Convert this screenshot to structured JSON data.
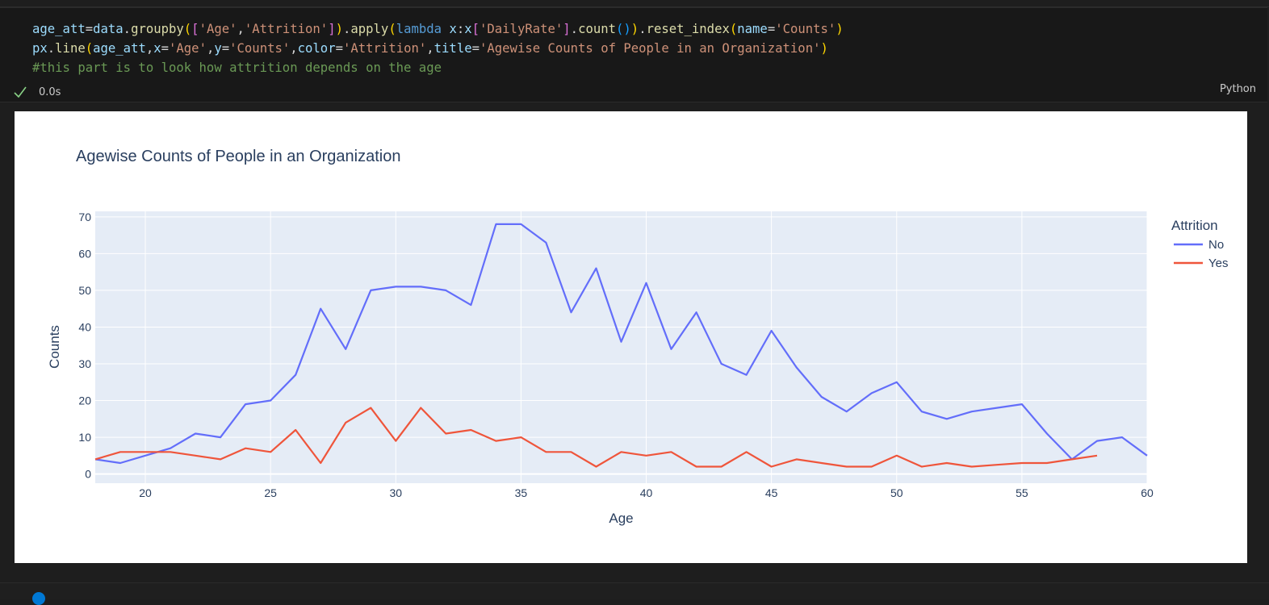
{
  "cell": {
    "code_lines": [
      [
        {
          "t": "age_att",
          "c": "v"
        },
        {
          "t": "=",
          "c": "p"
        },
        {
          "t": "data",
          "c": "v"
        },
        {
          "t": ".",
          "c": "p"
        },
        {
          "t": "groupby",
          "c": "f"
        },
        {
          "t": "(",
          "c": "b1"
        },
        {
          "t": "[",
          "c": "b2"
        },
        {
          "t": "'Age'",
          "c": "s"
        },
        {
          "t": ",",
          "c": "p"
        },
        {
          "t": "'Attrition'",
          "c": "s"
        },
        {
          "t": "]",
          "c": "b2"
        },
        {
          "t": ")",
          "c": "b1"
        },
        {
          "t": ".",
          "c": "p"
        },
        {
          "t": "apply",
          "c": "f"
        },
        {
          "t": "(",
          "c": "b1"
        },
        {
          "t": "lambda",
          "c": "k"
        },
        {
          "t": " ",
          "c": "p"
        },
        {
          "t": "x",
          "c": "v"
        },
        {
          "t": ":",
          "c": "p"
        },
        {
          "t": "x",
          "c": "v"
        },
        {
          "t": "[",
          "c": "b2"
        },
        {
          "t": "'DailyRate'",
          "c": "s"
        },
        {
          "t": "]",
          "c": "b2"
        },
        {
          "t": ".",
          "c": "p"
        },
        {
          "t": "count",
          "c": "f"
        },
        {
          "t": "(",
          "c": "b3"
        },
        {
          "t": ")",
          "c": "b3"
        },
        {
          "t": ")",
          "c": "b1"
        },
        {
          "t": ".",
          "c": "p"
        },
        {
          "t": "reset_index",
          "c": "f"
        },
        {
          "t": "(",
          "c": "b1"
        },
        {
          "t": "name",
          "c": "v"
        },
        {
          "t": "=",
          "c": "p"
        },
        {
          "t": "'Counts'",
          "c": "s"
        },
        {
          "t": ")",
          "c": "b1"
        }
      ],
      [
        {
          "t": "px",
          "c": "v"
        },
        {
          "t": ".",
          "c": "p"
        },
        {
          "t": "line",
          "c": "f"
        },
        {
          "t": "(",
          "c": "b1"
        },
        {
          "t": "age_att",
          "c": "v"
        },
        {
          "t": ",",
          "c": "p"
        },
        {
          "t": "x",
          "c": "v"
        },
        {
          "t": "=",
          "c": "p"
        },
        {
          "t": "'Age'",
          "c": "s"
        },
        {
          "t": ",",
          "c": "p"
        },
        {
          "t": "y",
          "c": "v"
        },
        {
          "t": "=",
          "c": "p"
        },
        {
          "t": "'Counts'",
          "c": "s"
        },
        {
          "t": ",",
          "c": "p"
        },
        {
          "t": "color",
          "c": "v"
        },
        {
          "t": "=",
          "c": "p"
        },
        {
          "t": "'Attrition'",
          "c": "s"
        },
        {
          "t": ",",
          "c": "p"
        },
        {
          "t": "title",
          "c": "v"
        },
        {
          "t": "=",
          "c": "p"
        },
        {
          "t": "'Agewise Counts of People in an Organization'",
          "c": "s"
        },
        {
          "t": ")",
          "c": "b1"
        }
      ],
      [
        {
          "t": "#this part is to look how attrition depends on the age",
          "c": "c"
        }
      ]
    ],
    "exec_time": "0.0s",
    "language": "Python"
  },
  "colors": {
    "no": "#636efa",
    "yes": "#ef553b",
    "plot_bg": "#e5ecf6",
    "text": "#2a3f5f"
  },
  "chart_data": {
    "type": "line",
    "title": "Agewise Counts of People in an Organization",
    "xlabel": "Age",
    "ylabel": "Counts",
    "xlim": [
      18,
      60
    ],
    "ylim": [
      -2.5,
      71.5
    ],
    "xticks": [
      20,
      25,
      30,
      35,
      40,
      45,
      50,
      55,
      60
    ],
    "yticks": [
      0,
      10,
      20,
      30,
      40,
      50,
      60,
      70
    ],
    "legend_title": "Attrition",
    "legend_position": "right",
    "series": [
      {
        "name": "No",
        "color": "#636efa",
        "x": [
          18,
          19,
          20,
          21,
          22,
          23,
          24,
          25,
          26,
          27,
          28,
          29,
          30,
          31,
          32,
          33,
          34,
          35,
          36,
          37,
          38,
          39,
          40,
          41,
          42,
          43,
          44,
          45,
          46,
          47,
          48,
          49,
          50,
          51,
          52,
          53,
          54,
          55,
          56,
          57,
          58,
          59,
          60
        ],
        "y": [
          4,
          3,
          5,
          7,
          11,
          10,
          19,
          20,
          27,
          45,
          34,
          50,
          51,
          51,
          50,
          46,
          68,
          68,
          63,
          44,
          56,
          36,
          52,
          34,
          44,
          30,
          27,
          39,
          29,
          21,
          17,
          22,
          25,
          17,
          15,
          17,
          18,
          19,
          11,
          4,
          9,
          10,
          5
        ]
      },
      {
        "name": "Yes",
        "color": "#ef553b",
        "x": [
          18,
          19,
          20,
          21,
          22,
          23,
          24,
          25,
          26,
          27,
          28,
          29,
          30,
          31,
          32,
          33,
          34,
          35,
          36,
          37,
          38,
          39,
          40,
          41,
          42,
          43,
          44,
          45,
          46,
          47,
          48,
          49,
          50,
          51,
          52,
          53,
          54,
          55,
          56,
          57,
          58
        ],
        "y": [
          4,
          6,
          6,
          6,
          5,
          4,
          7,
          6,
          12,
          3,
          14,
          18,
          9,
          18,
          11,
          12,
          9,
          10,
          6,
          6,
          2,
          6,
          5,
          6,
          2,
          2,
          6,
          2,
          4,
          3,
          2,
          2,
          5,
          2,
          3,
          2,
          2.5,
          3,
          3,
          4,
          5
        ]
      }
    ]
  }
}
